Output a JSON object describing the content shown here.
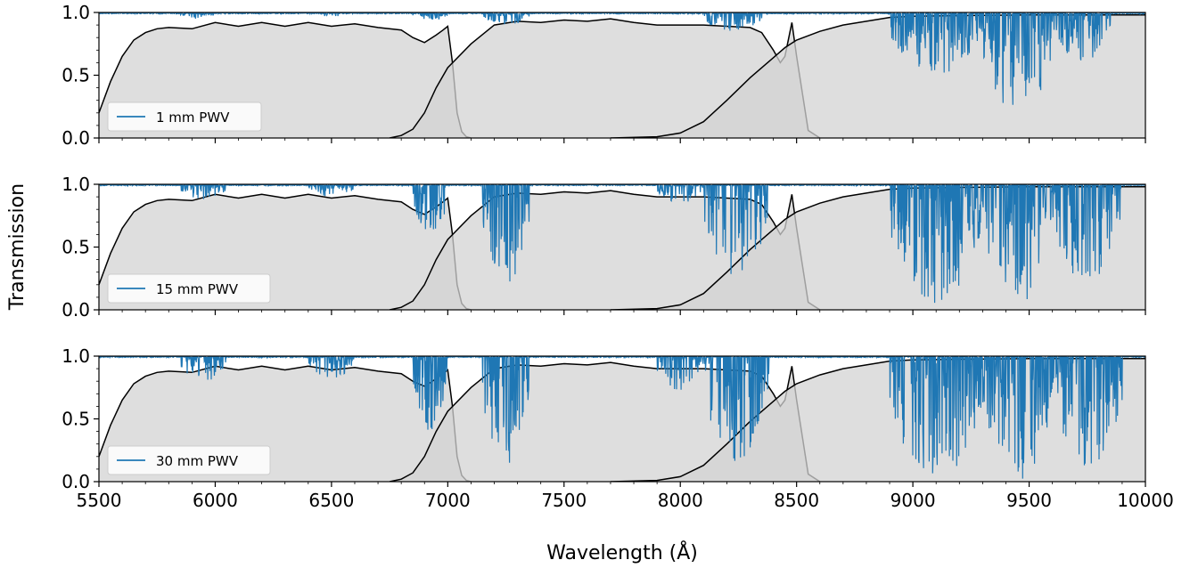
{
  "chart_data": {
    "type": "line",
    "xlabel": "Wavelength (Å)",
    "ylabel": "Transmission",
    "xlim": [
      5500,
      10000
    ],
    "ylim": [
      0,
      1
    ],
    "x_ticks": [
      5500,
      6000,
      6500,
      7000,
      7500,
      8000,
      8500,
      9000,
      9500,
      10000
    ],
    "y_ticks": [
      "0.0",
      "0.5",
      "1.0"
    ],
    "legend_placement": "lower-left",
    "colors": {
      "atmosphere": "#1f77b4",
      "filter_fill": "#d3d3d3",
      "filter_line": "#000000"
    },
    "filters": [
      {
        "x": [
          5500,
          5550,
          5600,
          5650,
          5700,
          5750,
          5800,
          5900,
          6000,
          6100,
          6200,
          6300,
          6400,
          6500,
          6600,
          6700,
          6800,
          6850,
          6900,
          6950,
          6980,
          7000,
          7020,
          7040,
          7060,
          7080,
          7100
        ],
        "y": [
          0.2,
          0.45,
          0.65,
          0.78,
          0.84,
          0.87,
          0.88,
          0.87,
          0.92,
          0.89,
          0.92,
          0.89,
          0.92,
          0.89,
          0.91,
          0.88,
          0.86,
          0.8,
          0.76,
          0.82,
          0.86,
          0.89,
          0.6,
          0.2,
          0.05,
          0.01,
          0.0
        ]
      },
      {
        "x": [
          6750,
          6800,
          6850,
          6900,
          6950,
          7000,
          7100,
          7200,
          7300,
          7400,
          7500,
          7600,
          7700,
          7800,
          7900,
          8000,
          8100,
          8200,
          8300,
          8350,
          8400,
          8430,
          8450,
          8480,
          8500,
          8550,
          8600
        ],
        "y": [
          0.0,
          0.02,
          0.07,
          0.2,
          0.4,
          0.56,
          0.75,
          0.9,
          0.93,
          0.92,
          0.94,
          0.93,
          0.95,
          0.92,
          0.9,
          0.9,
          0.9,
          0.89,
          0.88,
          0.84,
          0.7,
          0.6,
          0.65,
          0.92,
          0.65,
          0.06,
          0.0
        ]
      },
      {
        "x": [
          7700,
          7900,
          8000,
          8100,
          8200,
          8300,
          8400,
          8450,
          8500,
          8600,
          8700,
          8800,
          8900,
          9000,
          9200,
          9500,
          9800,
          10000
        ],
        "y": [
          0.0,
          0.01,
          0.04,
          0.13,
          0.3,
          0.48,
          0.64,
          0.72,
          0.78,
          0.85,
          0.9,
          0.93,
          0.96,
          0.97,
          0.975,
          0.98,
          0.98,
          0.98
        ]
      }
    ],
    "series": [
      {
        "name": "1 mm PWV",
        "bands": [
          {
            "from": 5850,
            "to": 6000,
            "depth": 0.05
          },
          {
            "from": 6450,
            "to": 6550,
            "depth": 0.04
          },
          {
            "from": 6850,
            "to": 7000,
            "depth": 0.06
          },
          {
            "from": 7150,
            "to": 7350,
            "depth": 0.1
          },
          {
            "from": 8100,
            "to": 8350,
            "depth": 0.15
          },
          {
            "from": 8900,
            "to": 9300,
            "depth": 0.5
          },
          {
            "from": 9300,
            "to": 9600,
            "depth": 0.85
          },
          {
            "from": 9600,
            "to": 9850,
            "depth": 0.4
          }
        ]
      },
      {
        "name": "15 mm PWV",
        "bands": [
          {
            "from": 5850,
            "to": 6050,
            "depth": 0.12
          },
          {
            "from": 6400,
            "to": 6600,
            "depth": 0.1
          },
          {
            "from": 6850,
            "to": 7000,
            "depth": 0.4
          },
          {
            "from": 7150,
            "to": 7350,
            "depth": 0.8
          },
          {
            "from": 7900,
            "to": 8100,
            "depth": 0.15
          },
          {
            "from": 8100,
            "to": 8380,
            "depth": 0.75
          },
          {
            "from": 8900,
            "to": 9300,
            "depth": 0.95
          },
          {
            "from": 9300,
            "to": 9600,
            "depth": 1.0
          },
          {
            "from": 9600,
            "to": 9900,
            "depth": 0.8
          }
        ]
      },
      {
        "name": "30 mm PWV",
        "bands": [
          {
            "from": 5850,
            "to": 6050,
            "depth": 0.2
          },
          {
            "from": 6400,
            "to": 6600,
            "depth": 0.18
          },
          {
            "from": 6850,
            "to": 7000,
            "depth": 0.6
          },
          {
            "from": 7150,
            "to": 7350,
            "depth": 0.9
          },
          {
            "from": 7900,
            "to": 8100,
            "depth": 0.3
          },
          {
            "from": 8100,
            "to": 8380,
            "depth": 0.85
          },
          {
            "from": 8900,
            "to": 9300,
            "depth": 1.0
          },
          {
            "from": 9300,
            "to": 9600,
            "depth": 1.0
          },
          {
            "from": 9600,
            "to": 9900,
            "depth": 0.9
          }
        ]
      }
    ]
  }
}
